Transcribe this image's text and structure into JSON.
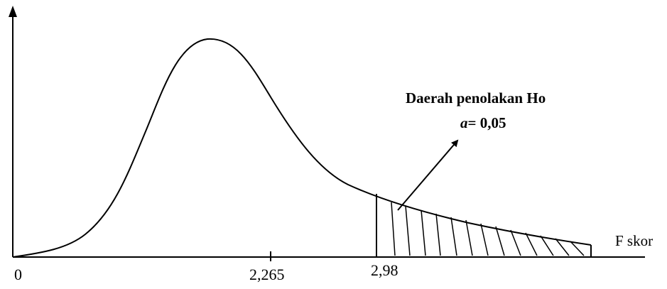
{
  "diagram": {
    "x_axis_label": "F skor",
    "tick_labels": {
      "origin": "0",
      "mean": "2,265",
      "critical": "2,98"
    },
    "rejection_region": {
      "title": "Daerah penolakan Ho",
      "alpha_symbol": "a",
      "alpha_value": "= 0,05"
    }
  }
}
